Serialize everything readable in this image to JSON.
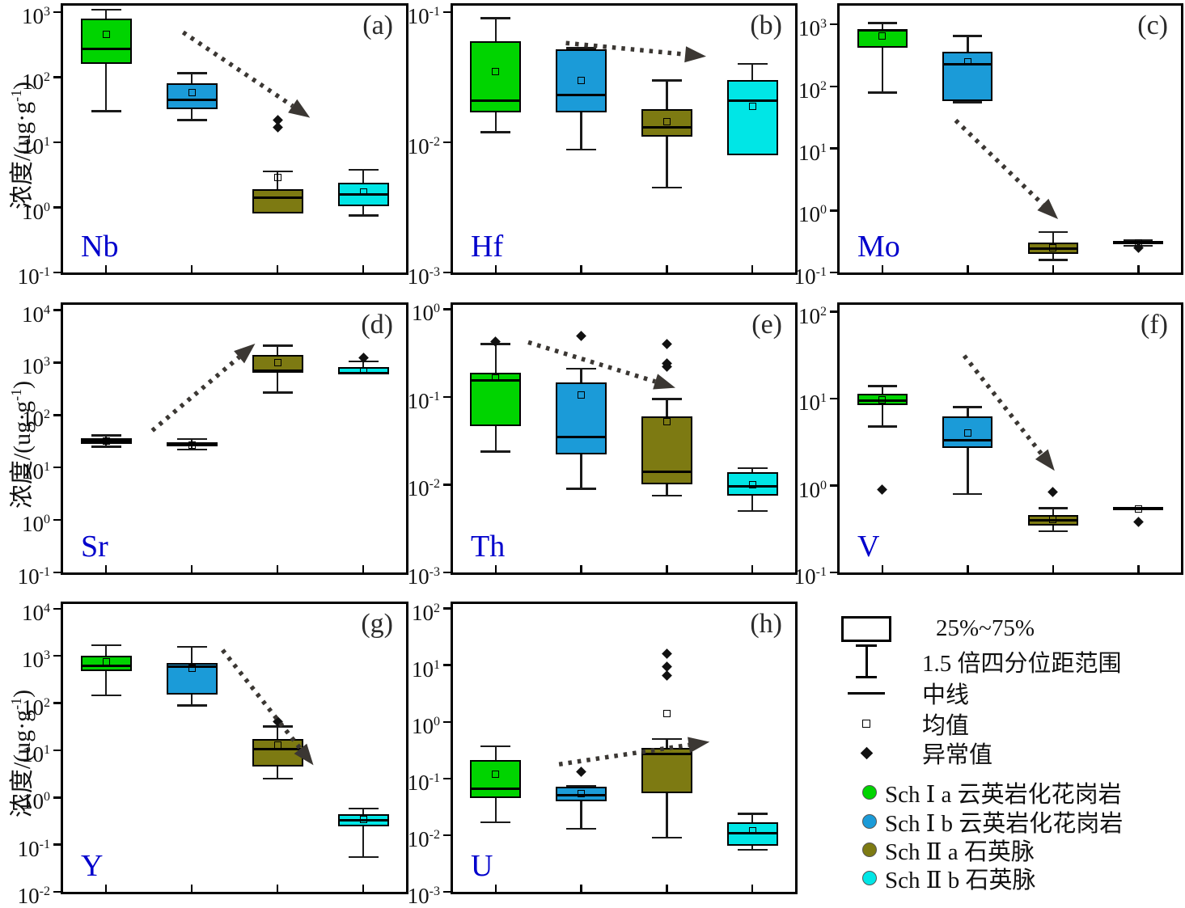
{
  "axis": {
    "ylabel_prefix": "浓度/(ug·g",
    "ylabel_sup": "-1",
    "ylabel_suffix": ")"
  },
  "colors": {
    "green": "#00d400",
    "blue": "#1b9bd8",
    "olive": "#7d7a12",
    "cyan": "#00e6e6",
    "element_label": "#0000cc",
    "arrow": "#3b3733"
  },
  "legend": {
    "box_label": "25%~75%",
    "whisker_label": "1.5 倍四分位距范围",
    "median_label": "中线",
    "mean_label": "均值",
    "outlier_label": "异常值",
    "series": [
      {
        "name": "Sch Ⅰ a 云英岩化花岗岩",
        "color": "#00d400"
      },
      {
        "name": "Sch Ⅰ b 云英岩化花岗岩",
        "color": "#1b9bd8"
      },
      {
        "name": "Sch Ⅱ a 石英脉",
        "color": "#7d7a12"
      },
      {
        "name": "Sch Ⅱ b 石英脉",
        "color": "#00e6e6"
      }
    ]
  },
  "chart_data": [
    {
      "type": "box",
      "panel_label": "(a)",
      "element": "Nb",
      "ylog": true,
      "ylim_exp": [
        -1,
        3.1
      ],
      "yticks_exp": [
        3,
        2,
        1,
        0,
        -1
      ],
      "arrow": {
        "x1": 0.35,
        "y1": 0.1,
        "x2": 0.72,
        "y2": 0.42
      },
      "groups": [
        {
          "name": "Sch Ⅰ a 云英岩化花岗岩",
          "color": "green",
          "low": 30,
          "q1": 160,
          "median": 270,
          "q3": 800,
          "high": 1100,
          "mean": 450,
          "outliers": []
        },
        {
          "name": "Sch Ⅰ b 云英岩化花岗岩",
          "color": "blue",
          "low": 22,
          "q1": 32,
          "median": 45,
          "q3": 80,
          "high": 115,
          "mean": 58,
          "outliers": []
        },
        {
          "name": "Sch Ⅱ a 石英脉",
          "color": "olive",
          "low": null,
          "q1": 0.8,
          "median": 1.4,
          "q3": 1.9,
          "high": 3.6,
          "mean": 2.9,
          "outliers": [
            17,
            22
          ]
        },
        {
          "name": "Sch Ⅱ b 石英脉",
          "color": "cyan",
          "low": 0.75,
          "q1": 1.05,
          "median": 1.6,
          "q3": 2.4,
          "high": 3.8,
          "mean": 1.7,
          "outliers": []
        }
      ]
    },
    {
      "type": "box",
      "panel_label": "(b)",
      "element": "Hf",
      "ylog": true,
      "ylim_exp": [
        -3,
        -0.95
      ],
      "yticks_exp": [
        -1,
        -2,
        -3
      ],
      "arrow": {
        "x1": 0.33,
        "y1": 0.14,
        "x2": 0.74,
        "y2": 0.19
      },
      "groups": [
        {
          "name": "Sch Ⅰ a 云英岩化花岗岩",
          "color": "green",
          "low": 0.012,
          "q1": 0.017,
          "median": 0.021,
          "q3": 0.06,
          "high": 0.09,
          "mean": 0.035,
          "outliers": []
        },
        {
          "name": "Sch Ⅰ b 云英岩化花岗岩",
          "color": "blue",
          "low": 0.0088,
          "q1": 0.017,
          "median": 0.023,
          "q3": 0.052,
          "high": 0.053,
          "mean": 0.03,
          "outliers": []
        },
        {
          "name": "Sch Ⅱ a 石英脉",
          "color": "olive",
          "low": 0.0045,
          "q1": 0.011,
          "median": 0.013,
          "q3": 0.018,
          "high": 0.03,
          "mean": 0.0145,
          "outliers": []
        },
        {
          "name": "Sch Ⅱ b 石英脉",
          "color": "cyan",
          "low": null,
          "q1": 0.008,
          "median": 0.021,
          "q3": 0.03,
          "high": 0.04,
          "mean": 0.019,
          "outliers": []
        }
      ]
    },
    {
      "type": "box",
      "panel_label": "(c)",
      "element": "Mo",
      "ylog": true,
      "ylim_exp": [
        -1,
        3.3
      ],
      "yticks_exp": [
        3,
        2,
        1,
        0,
        -1
      ],
      "arrow": {
        "x1": 0.34,
        "y1": 0.43,
        "x2": 0.64,
        "y2": 0.8
      },
      "groups": [
        {
          "name": "Sch Ⅰ a 云英岩化花岗岩",
          "color": "green",
          "low": 80,
          "q1": 420,
          "median": 790,
          "q3": 830,
          "high": 1050,
          "mean": 650,
          "outliers": []
        },
        {
          "name": "Sch Ⅰ b 云英岩化花岗岩",
          "color": "blue",
          "low": 55,
          "q1": 58,
          "median": 230,
          "q3": 360,
          "high": 650,
          "mean": 250,
          "outliers": []
        },
        {
          "name": "Sch Ⅱ a 石英脉",
          "color": "olive",
          "low": 0.16,
          "q1": 0.2,
          "median": 0.24,
          "q3": 0.3,
          "high": 0.45,
          "mean": 0.25,
          "outliers": []
        },
        {
          "name": "Sch Ⅱ b 石英脉",
          "color": "cyan",
          "low": 0.27,
          "q1": 0.29,
          "median": 0.3,
          "q3": 0.32,
          "high": 0.33,
          "mean": 0.3,
          "outliers": [
            0.25
          ]
        }
      ]
    },
    {
      "type": "box",
      "panel_label": "(d)",
      "element": "Sr",
      "ylog": true,
      "ylim_exp": [
        -1,
        4.1
      ],
      "yticks_exp": [
        4,
        3,
        2,
        1,
        0,
        -1
      ],
      "arrow": {
        "x1": 0.26,
        "y1": 0.47,
        "x2": 0.56,
        "y2": 0.145
      },
      "groups": [
        {
          "name": "Sch Ⅰ a 云英岩化花岗岩",
          "color": "green",
          "low": 25,
          "q1": 28,
          "median": 32,
          "q3": 36,
          "high": 41,
          "mean": 32,
          "outliers": []
        },
        {
          "name": "Sch Ⅰ b 云英岩化花岗岩",
          "color": "blue",
          "low": 22,
          "q1": 25,
          "median": 27.5,
          "q3": 30,
          "high": 35,
          "mean": 27,
          "outliers": []
        },
        {
          "name": "Sch Ⅱ a 石英脉",
          "color": "olive",
          "low": 270,
          "q1": 650,
          "median": 700,
          "q3": 1400,
          "high": 2100,
          "mean": 1000,
          "outliers": []
        },
        {
          "name": "Sch Ⅱ b 石英脉",
          "color": "cyan",
          "low": null,
          "q1": 600,
          "median": 630,
          "q3": 820,
          "high": 1050,
          "mean": 700,
          "outliers": [
            1250
          ]
        }
      ]
    },
    {
      "type": "box",
      "panel_label": "(e)",
      "element": "Th",
      "ylog": true,
      "ylim_exp": [
        -3,
        0.05
      ],
      "yticks_exp": [
        0,
        -1,
        -2,
        -3
      ],
      "arrow": {
        "x1": 0.22,
        "y1": 0.14,
        "x2": 0.65,
        "y2": 0.31
      },
      "groups": [
        {
          "name": "Sch Ⅰ a 云英岩化花岗岩",
          "color": "green",
          "low": 0.024,
          "q1": 0.047,
          "median": 0.155,
          "q3": 0.19,
          "high": 0.4,
          "mean": 0.165,
          "outliers": [
            0.43
          ]
        },
        {
          "name": "Sch Ⅰ b 云英岩化花岗岩",
          "color": "blue",
          "low": 0.009,
          "q1": 0.022,
          "median": 0.035,
          "q3": 0.145,
          "high": 0.21,
          "mean": 0.105,
          "outliers": [
            0.5
          ]
        },
        {
          "name": "Sch Ⅱ a 石英脉",
          "color": "olive",
          "low": 0.0075,
          "q1": 0.01,
          "median": 0.014,
          "q3": 0.06,
          "high": 0.095,
          "mean": 0.052,
          "outliers": [
            0.22,
            0.24,
            0.4
          ]
        },
        {
          "name": "Sch Ⅱ b 石英脉",
          "color": "cyan",
          "low": 0.005,
          "q1": 0.0075,
          "median": 0.0095,
          "q3": 0.014,
          "high": 0.0155,
          "mean": 0.01,
          "outliers": []
        }
      ]
    },
    {
      "type": "box",
      "panel_label": "(f)",
      "element": "V",
      "ylog": true,
      "ylim_exp": [
        -1,
        2.08
      ],
      "yticks_exp": [
        2,
        1,
        0,
        -1
      ],
      "arrow": {
        "x1": 0.365,
        "y1": 0.19,
        "x2": 0.63,
        "y2": 0.62
      },
      "groups": [
        {
          "name": "Sch Ⅰ a 云英岩化花岗岩",
          "color": "green",
          "low": 4.8,
          "q1": 8.5,
          "median": 9.5,
          "q3": 11.5,
          "high": 14,
          "mean": 9.7,
          "outliers": [
            0.9
          ]
        },
        {
          "name": "Sch Ⅰ b 云英岩化花岗岩",
          "color": "blue",
          "low": 0.8,
          "q1": 2.7,
          "median": 3.3,
          "q3": 6.3,
          "high": 8,
          "mean": 4.0,
          "outliers": []
        },
        {
          "name": "Sch Ⅱ a 石英脉",
          "color": "olive",
          "low": 0.3,
          "q1": 0.35,
          "median": 0.4,
          "q3": 0.46,
          "high": 0.55,
          "mean": 0.41,
          "outliers": [
            0.85
          ]
        },
        {
          "name": "Sch Ⅱ b 石英脉",
          "color": "cyan",
          "low": null,
          "q1": 0.52,
          "median": 0.54,
          "q3": 0.57,
          "high": null,
          "mean": 0.54,
          "outliers": [
            0.38
          ]
        }
      ]
    },
    {
      "type": "box",
      "panel_label": "(g)",
      "element": "Y",
      "ylog": true,
      "ylim_exp": [
        -2,
        4.1
      ],
      "yticks_exp": [
        4,
        3,
        2,
        1,
        0,
        -1,
        -2
      ],
      "arrow": {
        "x1": 0.465,
        "y1": 0.16,
        "x2": 0.73,
        "y2": 0.56
      },
      "groups": [
        {
          "name": "Sch Ⅰ a 云英岩化花岗岩",
          "color": "green",
          "low": 145,
          "q1": 480,
          "median": 620,
          "q3": 1000,
          "high": 1700,
          "mean": 750,
          "outliers": []
        },
        {
          "name": "Sch Ⅰ b 云英岩化花岗岩",
          "color": "blue",
          "low": 90,
          "q1": 150,
          "median": 600,
          "q3": 720,
          "high": 1550,
          "mean": 550,
          "outliers": []
        },
        {
          "name": "Sch Ⅱ a 石英脉",
          "color": "olive",
          "low": 2.5,
          "q1": 4.5,
          "median": 10.5,
          "q3": 17,
          "high": 32,
          "mean": 13,
          "outliers": [
            40
          ]
        },
        {
          "name": "Sch Ⅱ b 石英脉",
          "color": "cyan",
          "low": 0.055,
          "q1": 0.24,
          "median": 0.33,
          "q3": 0.45,
          "high": 0.58,
          "mean": 0.34,
          "outliers": []
        }
      ]
    },
    {
      "type": "box",
      "panel_label": "(h)",
      "element": "U",
      "ylog": true,
      "ylim_exp": [
        -3,
        2.08
      ],
      "yticks_exp": [
        2,
        1,
        0,
        -1,
        -2,
        -3
      ],
      "arrow": {
        "x1": 0.31,
        "y1": 0.557,
        "x2": 0.75,
        "y2": 0.479
      },
      "groups": [
        {
          "name": "Sch Ⅰ a 云英岩化花岗岩",
          "color": "green",
          "low": 0.017,
          "q1": 0.045,
          "median": 0.065,
          "q3": 0.21,
          "high": 0.37,
          "mean": 0.12,
          "outliers": []
        },
        {
          "name": "Sch Ⅰ b 云英岩化花岗岩",
          "color": "blue",
          "low": 0.013,
          "q1": 0.04,
          "median": 0.05,
          "q3": 0.072,
          "high": 0.073,
          "mean": 0.055,
          "outliers": [
            0.13
          ]
        },
        {
          "name": "Sch Ⅱ a 石英脉",
          "color": "olive",
          "low": 0.009,
          "q1": 0.055,
          "median": 0.27,
          "q3": 0.35,
          "high": 0.5,
          "mean": 1.4,
          "outliers": [
            6.5,
            9.5,
            16
          ]
        },
        {
          "name": "Sch Ⅱ b 石英脉",
          "color": "cyan",
          "low": 0.0055,
          "q1": 0.0065,
          "median": 0.011,
          "q3": 0.017,
          "high": 0.024,
          "mean": 0.012,
          "outliers": []
        }
      ]
    }
  ]
}
